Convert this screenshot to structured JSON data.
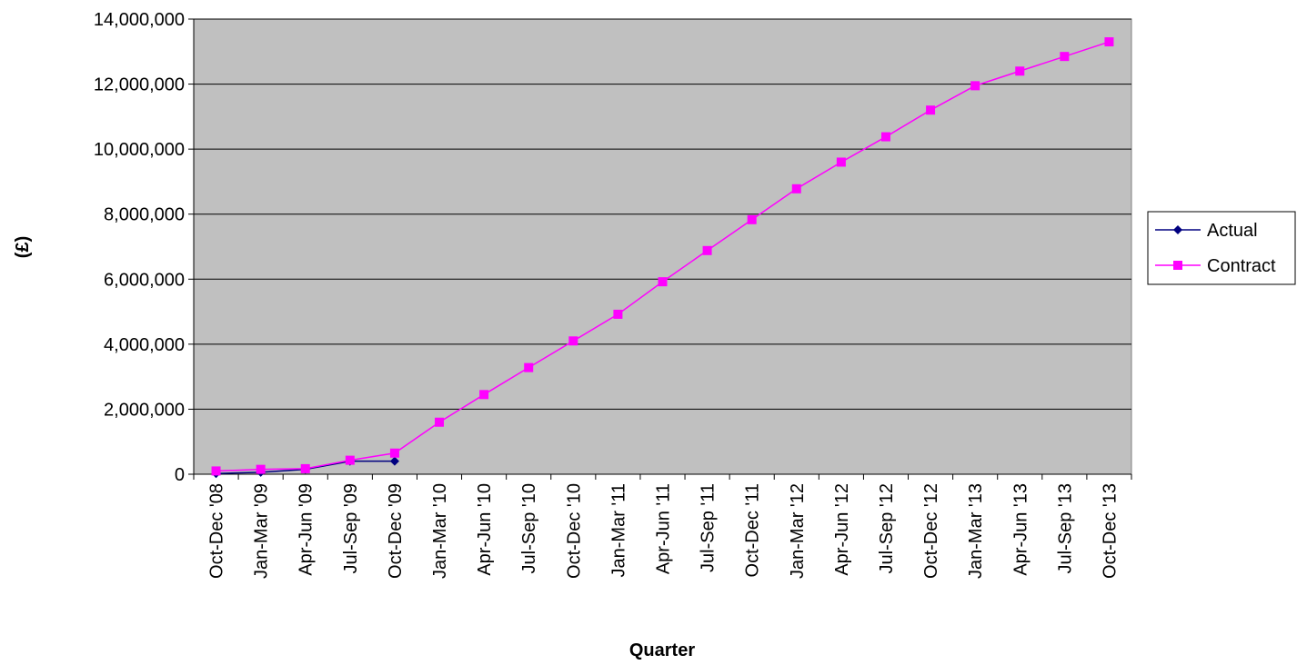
{
  "chart_data": {
    "type": "line",
    "title": "",
    "xlabel": "Quarter",
    "ylabel": "(£)",
    "ylim": [
      0,
      14000000
    ],
    "y_ticks": [
      0,
      2000000,
      4000000,
      6000000,
      8000000,
      10000000,
      12000000,
      14000000
    ],
    "y_tick_labels": [
      "0",
      "2,000,000",
      "4,000,000",
      "6,000,000",
      "8,000,000",
      "10,000,000",
      "12,000,000",
      "14,000,000"
    ],
    "grid": true,
    "plot_background": "#c0c0c0",
    "legend_position": "right",
    "categories": [
      "Oct-Dec '08",
      "Jan-Mar '09",
      "Apr-Jun '09",
      "Jul-Sep '09",
      "Oct-Dec '09",
      "Jan-Mar '10",
      "Apr-Jun '10",
      "Jul-Sep '10",
      "Oct-Dec '10",
      "Jan-Mar '11",
      "Apr-Jun '11",
      "Jul-Sep '11",
      "Oct-Dec '11",
      "Jan-Mar '12",
      "Apr-Jun '12",
      "Jul-Sep '12",
      "Oct-Dec '12",
      "Jan-Mar '13",
      "Apr-Jun '13",
      "Jul-Sep '13",
      "Oct-Dec '13"
    ],
    "series": [
      {
        "name": "Actual",
        "color": "#000080",
        "marker": "diamond",
        "values": [
          20000,
          60000,
          150000,
          400000,
          400000,
          null,
          null,
          null,
          null,
          null,
          null,
          null,
          null,
          null,
          null,
          null,
          null,
          null,
          null,
          null,
          null
        ]
      },
      {
        "name": "Contract",
        "color": "#ff00ff",
        "marker": "square",
        "values": [
          100000,
          150000,
          170000,
          430000,
          650000,
          1600000,
          2450000,
          3280000,
          4100000,
          4920000,
          5920000,
          6880000,
          7830000,
          8780000,
          9600000,
          10380000,
          11200000,
          11950000,
          12400000,
          12850000,
          13300000
        ]
      }
    ]
  }
}
